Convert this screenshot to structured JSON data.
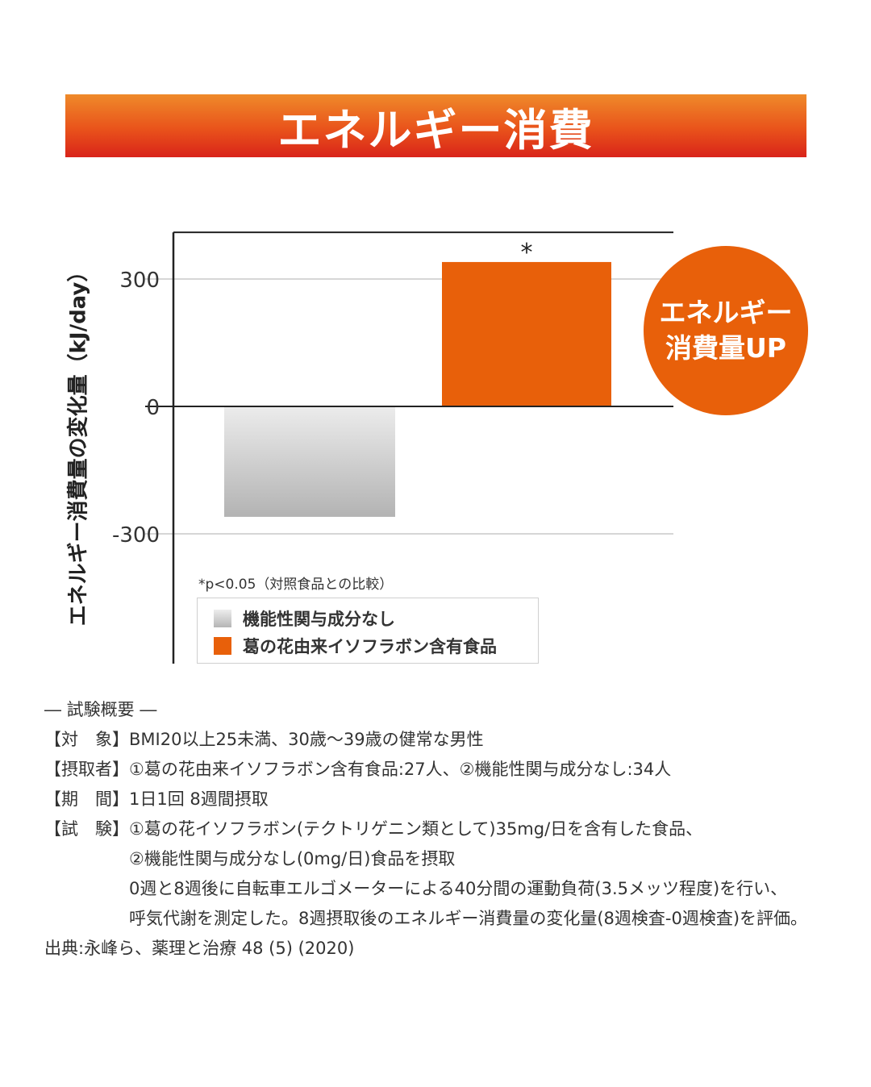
{
  "banner": {
    "title": "エネルギー消費"
  },
  "chart_data": {
    "type": "bar",
    "categories": [
      "機能性関与成分なし",
      "葛の花由来イソフラボン含有食品"
    ],
    "values": [
      -260,
      340
    ],
    "colors": [
      "#c8c8c8",
      "#e8600a"
    ],
    "ylabel": "エネルギー消費量の変化量（kJ/day）",
    "ylim": [
      -400,
      410
    ],
    "yticks": [
      300,
      0,
      -300
    ],
    "ytick_labels": [
      "300",
      "0",
      "-300"
    ],
    "grid": true,
    "significance": [
      "",
      "*"
    ],
    "note": "*p<0.05（対照食品との比較）",
    "legend": [
      "機能性関与成分なし",
      "葛の花由来イソフラボン含有食品"
    ],
    "legend_position": "bottom-left"
  },
  "badge": {
    "line1": "エネルギー",
    "line2": "消費量UP"
  },
  "summary": {
    "heading": "― 試験概要 ―",
    "rows": [
      {
        "label": "【対　象】",
        "text": "BMI20以上25未満、30歳～39歳の健常な男性"
      },
      {
        "label": "【摂取者】",
        "text": "①葛の花由来イソフラボン含有食品:27人、②機能性関与成分なし:34人"
      },
      {
        "label": "【期　間】",
        "text": "1日1回 8週間摂取"
      },
      {
        "label": "【試　験】",
        "text": "①葛の花イソフラボン(テクトリゲニン類として)35mg/日を含有した食品、"
      }
    ],
    "continuation": [
      "②機能性関与成分なし(0mg/日)食品を摂取",
      "0週と8週後に自転車エルゴメーターによる40分間の運動負荷(3.5メッツ程度)を行い、",
      "呼気代謝を測定した。8週摂取後のエネルギー消費量の変化量(8週検査-0週検査)を評価。"
    ],
    "source": "出典:永峰ら、薬理と治療 48 (5) (2020)"
  }
}
